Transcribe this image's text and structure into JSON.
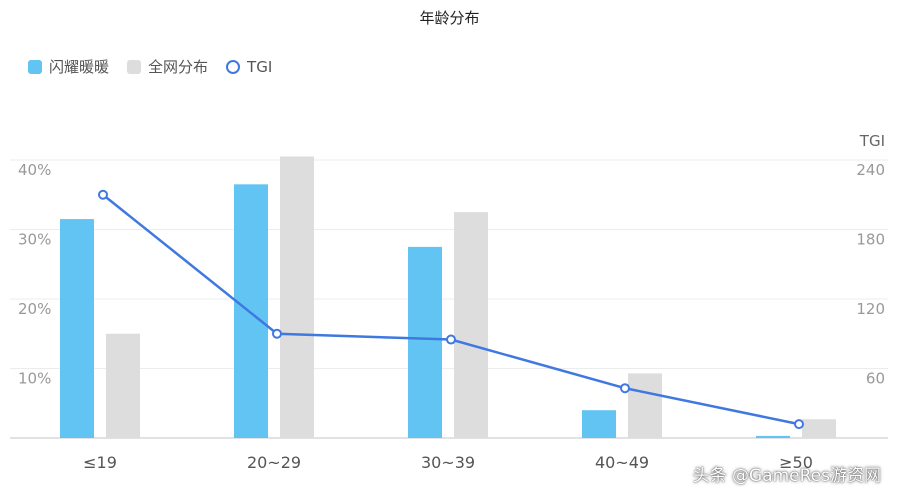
{
  "chart_data": {
    "type": "bar",
    "title": "年龄分布",
    "categories": [
      "≤19",
      "20~29",
      "30~39",
      "40~49",
      "≥50"
    ],
    "series": [
      {
        "name": "闪耀暖暖",
        "type": "bar",
        "axis": "left",
        "color": "#62c4f3",
        "values": [
          31.5,
          36.5,
          27.5,
          4.0,
          0.3
        ]
      },
      {
        "name": "全网分布",
        "type": "bar",
        "axis": "left",
        "color": "#dddddd",
        "values": [
          15.0,
          40.5,
          32.5,
          9.3,
          2.7
        ]
      },
      {
        "name": "TGI",
        "type": "line",
        "axis": "right",
        "color": "#3f78e0",
        "values": [
          210,
          90,
          85,
          43,
          12
        ]
      }
    ],
    "y_left": {
      "ticks": [
        "10%",
        "20%",
        "30%",
        "40%"
      ],
      "min": 0,
      "max": 40
    },
    "y_right": {
      "title": "TGI",
      "ticks": [
        "60",
        "120",
        "180",
        "240"
      ],
      "min": 0,
      "max": 240
    },
    "grid": true,
    "legend_position": "top-left"
  },
  "watermark": "头条 @GameRes游资网"
}
